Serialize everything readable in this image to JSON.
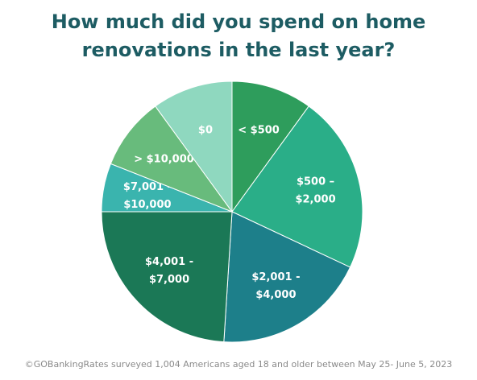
{
  "chart_data": {
    "type": "pie",
    "title": "How much did you spend on home renovations in the last year?",
    "categories": [
      "< $500",
      "$500 –\n$2,000",
      "$2,001 -\n$4,000",
      "$4,001 -\n$7,000",
      "$7,001 -\n$10,000",
      "> $10,000",
      "$0"
    ],
    "values": [
      10,
      22,
      19,
      24,
      6,
      9,
      10
    ],
    "colors": [
      "#2e9d5c",
      "#2aae88",
      "#1d7f8a",
      "#1b7856",
      "#3ab4ae",
      "#68bb7c",
      "#8fd8bf"
    ],
    "footnote": "©GOBankingRates surveyed 1,004 Americans aged 18 and older between May 25- June 5, 2023"
  }
}
